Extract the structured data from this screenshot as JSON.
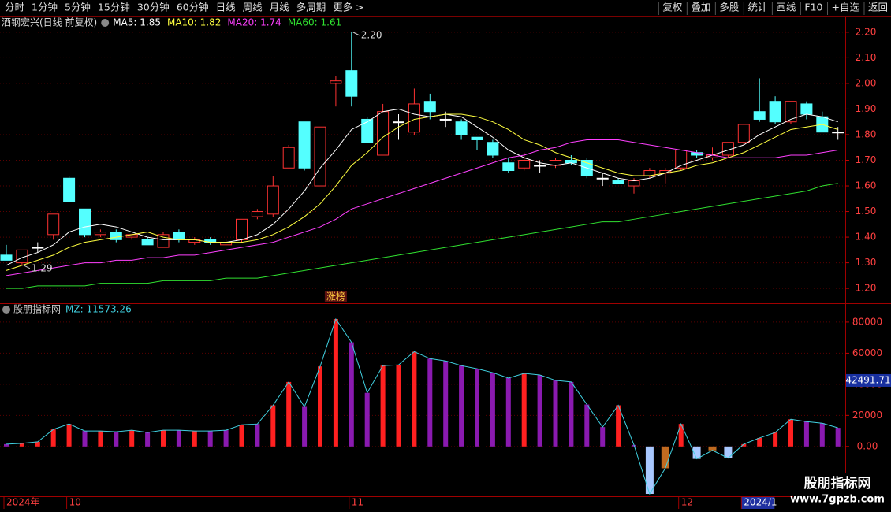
{
  "toolbar": {
    "left": [
      "分时",
      "1分钟",
      "5分钟",
      "15分钟",
      "30分钟",
      "60分钟",
      "日线",
      "周线",
      "月线",
      "多周期",
      "更多 >"
    ],
    "active": "日线",
    "right": [
      "复权",
      "叠加",
      "多股",
      "统计",
      "画线",
      "F10",
      "+自选",
      "返回"
    ]
  },
  "watermark": {
    "title": "股朋指标网",
    "url": "www.7gpzb.com"
  },
  "chart_data": [
    {
      "type": "candlestick",
      "title": "酒钢宏兴(日线 前复权)",
      "open": [
        1.33,
        1.3,
        1.36,
        1.41,
        1.63,
        1.51,
        1.41,
        1.42,
        1.4,
        1.39,
        1.36,
        1.42,
        1.38,
        1.39,
        1.37,
        1.39,
        1.48,
        1.49,
        1.67,
        1.85,
        1.6,
        2.0,
        2.05,
        1.86,
        1.72,
        1.85,
        1.81,
        1.93,
        1.86,
        1.85,
        1.79,
        1.77,
        1.69,
        1.67,
        1.68,
        1.68,
        1.7,
        1.7,
        1.63,
        1.62,
        1.6,
        1.64,
        1.65,
        1.67,
        1.73,
        1.71,
        1.72,
        1.77,
        1.89,
        1.93,
        1.85,
        1.92,
        1.87,
        1.81
      ],
      "high": [
        1.37,
        1.35,
        1.38,
        1.49,
        1.64,
        1.51,
        1.43,
        1.43,
        1.41,
        1.4,
        1.42,
        1.43,
        1.4,
        1.4,
        1.39,
        1.47,
        1.51,
        1.64,
        1.76,
        1.85,
        1.83,
        2.03,
        2.2,
        1.87,
        1.92,
        1.88,
        1.98,
        1.96,
        1.89,
        1.86,
        1.79,
        1.78,
        1.71,
        1.73,
        1.7,
        1.71,
        1.72,
        1.71,
        1.65,
        1.63,
        1.63,
        1.67,
        1.67,
        1.74,
        1.74,
        1.75,
        1.77,
        1.84,
        2.02,
        1.95,
        1.93,
        1.93,
        1.89,
        1.83
      ],
      "low": [
        1.31,
        1.29,
        1.34,
        1.39,
        1.54,
        1.4,
        1.4,
        1.38,
        1.39,
        1.37,
        1.36,
        1.38,
        1.37,
        1.37,
        1.37,
        1.38,
        1.47,
        1.48,
        1.67,
        1.66,
        1.6,
        1.91,
        1.91,
        1.77,
        1.72,
        1.78,
        1.8,
        1.86,
        1.83,
        1.78,
        1.74,
        1.71,
        1.65,
        1.66,
        1.65,
        1.67,
        1.68,
        1.63,
        1.6,
        1.61,
        1.57,
        1.63,
        1.61,
        1.66,
        1.71,
        1.7,
        1.71,
        1.76,
        1.85,
        1.84,
        1.84,
        1.86,
        1.81,
        1.78
      ],
      "close": [
        1.31,
        1.35,
        1.36,
        1.49,
        1.54,
        1.41,
        1.42,
        1.39,
        1.41,
        1.37,
        1.41,
        1.39,
        1.39,
        1.38,
        1.38,
        1.47,
        1.5,
        1.6,
        1.75,
        1.67,
        1.83,
        2.01,
        1.95,
        1.77,
        1.89,
        1.85,
        1.92,
        1.89,
        1.86,
        1.8,
        1.78,
        1.72,
        1.66,
        1.7,
        1.68,
        1.7,
        1.69,
        1.64,
        1.63,
        1.61,
        1.62,
        1.66,
        1.66,
        1.74,
        1.72,
        1.72,
        1.77,
        1.84,
        1.86,
        1.85,
        1.93,
        1.88,
        1.81,
        1.81
      ],
      "up_color": "#ff3232",
      "down_color": "#54ffff",
      "flat_color": "#ffffff",
      "series": [
        {
          "name": "MA5: 1.85",
          "color": "#ffffff",
          "values": [
            1.29,
            1.32,
            1.34,
            1.37,
            1.42,
            1.44,
            1.45,
            1.44,
            1.42,
            1.4,
            1.39,
            1.39,
            1.39,
            1.38,
            1.38,
            1.39,
            1.41,
            1.45,
            1.51,
            1.58,
            1.67,
            1.74,
            1.82,
            1.85,
            1.89,
            1.9,
            1.88,
            1.87,
            1.88,
            1.87,
            1.83,
            1.79,
            1.74,
            1.71,
            1.69,
            1.68,
            1.69,
            1.67,
            1.65,
            1.63,
            1.62,
            1.63,
            1.65,
            1.68,
            1.7,
            1.72,
            1.74,
            1.76,
            1.8,
            1.83,
            1.86,
            1.88,
            1.87,
            1.85
          ]
        },
        {
          "name": "MA10: 1.82",
          "color": "#ffff40",
          "values": [
            1.27,
            1.29,
            1.31,
            1.33,
            1.36,
            1.38,
            1.39,
            1.4,
            1.41,
            1.42,
            1.4,
            1.39,
            1.39,
            1.38,
            1.38,
            1.38,
            1.39,
            1.41,
            1.44,
            1.48,
            1.53,
            1.6,
            1.68,
            1.73,
            1.79,
            1.83,
            1.86,
            1.87,
            1.88,
            1.88,
            1.87,
            1.85,
            1.82,
            1.78,
            1.76,
            1.73,
            1.71,
            1.69,
            1.67,
            1.65,
            1.64,
            1.64,
            1.65,
            1.66,
            1.68,
            1.69,
            1.71,
            1.73,
            1.76,
            1.79,
            1.82,
            1.83,
            1.84,
            1.82
          ]
        },
        {
          "name": "MA20: 1.74",
          "color": "#ff40ff",
          "values": [
            1.25,
            1.26,
            1.27,
            1.28,
            1.29,
            1.3,
            1.3,
            1.31,
            1.31,
            1.32,
            1.32,
            1.33,
            1.33,
            1.34,
            1.35,
            1.36,
            1.37,
            1.38,
            1.4,
            1.42,
            1.44,
            1.47,
            1.51,
            1.53,
            1.55,
            1.57,
            1.59,
            1.61,
            1.63,
            1.65,
            1.67,
            1.69,
            1.71,
            1.72,
            1.74,
            1.75,
            1.77,
            1.78,
            1.78,
            1.78,
            1.77,
            1.76,
            1.75,
            1.74,
            1.73,
            1.72,
            1.71,
            1.71,
            1.71,
            1.71,
            1.72,
            1.72,
            1.73,
            1.74
          ]
        },
        {
          "name": "MA60: 1.61",
          "color": "#30e030",
          "values": [
            1.2,
            1.2,
            1.21,
            1.21,
            1.21,
            1.21,
            1.22,
            1.22,
            1.22,
            1.22,
            1.23,
            1.23,
            1.23,
            1.23,
            1.24,
            1.24,
            1.24,
            1.25,
            1.26,
            1.27,
            1.28,
            1.29,
            1.3,
            1.31,
            1.32,
            1.33,
            1.34,
            1.35,
            1.36,
            1.37,
            1.38,
            1.39,
            1.4,
            1.41,
            1.42,
            1.43,
            1.44,
            1.45,
            1.46,
            1.46,
            1.47,
            1.48,
            1.49,
            1.5,
            1.51,
            1.52,
            1.53,
            1.54,
            1.55,
            1.56,
            1.57,
            1.58,
            1.6,
            1.61
          ]
        }
      ],
      "ylim": [
        1.142,
        2.258
      ],
      "yticks": [
        {
          "value": 1.2,
          "label": "1.20"
        },
        {
          "value": 1.3,
          "label": "1.30"
        },
        {
          "value": 1.4,
          "label": "1.40"
        },
        {
          "value": 1.5,
          "label": "1.50"
        },
        {
          "value": 1.6,
          "label": "1.60"
        },
        {
          "value": 1.7,
          "label": "1.70"
        },
        {
          "value": 1.8,
          "label": "1.80"
        },
        {
          "value": 1.9,
          "label": "1.90"
        },
        {
          "value": 2.0,
          "label": "2.00"
        },
        {
          "value": 2.1,
          "label": "2.10"
        },
        {
          "value": 2.2,
          "label": "2.20"
        }
      ],
      "grid": true,
      "annotations": [
        {
          "text": "2.20",
          "index": 22,
          "value": 2.2
        },
        {
          "text": "1.29",
          "index": 1,
          "value": 1.29
        },
        {
          "text": "涨榜",
          "index": 21
        }
      ]
    },
    {
      "type": "bar",
      "title": "股朋指标网",
      "legend": "MZ: 11573.26",
      "categories": [
        "2024年",
        null,
        null,
        null,
        "10",
        null,
        null,
        null,
        null,
        null,
        null,
        null,
        null,
        null,
        null,
        null,
        null,
        null,
        null,
        null,
        null,
        null,
        "11",
        null,
        null,
        null,
        null,
        null,
        null,
        null,
        null,
        null,
        null,
        null,
        null,
        null,
        null,
        null,
        null,
        null,
        null,
        null,
        null,
        "12",
        null,
        null,
        null,
        "2024/1",
        null,
        null,
        null,
        null,
        null,
        null
      ],
      "values": [
        1500,
        2000,
        3000,
        11000,
        14500,
        10000,
        10000,
        9500,
        10500,
        9000,
        10500,
        10500,
        10000,
        10000,
        10500,
        14000,
        14500,
        26500,
        41500,
        25500,
        51500,
        82000,
        67000,
        34500,
        52000,
        52500,
        61000,
        56500,
        55000,
        52000,
        50000,
        47500,
        44000,
        47000,
        46000,
        42500,
        41500,
        27000,
        12500,
        26500,
        1000,
        -30500,
        -14000,
        14500,
        -8000,
        -2500,
        -7500,
        1500,
        5500,
        9000,
        17500,
        16000,
        15000,
        12000
      ],
      "bar_colors": [
        "#8a1ab0",
        "#ff2020",
        "#ff2020",
        "#ff2020",
        "#ff2020",
        "#8a1ab0",
        "#ff2020",
        "#8a1ab0",
        "#ff2020",
        "#8a1ab0",
        "#ff2020",
        "#8a1ab0",
        "#ff2020",
        "#8a1ab0",
        "#8a1ab0",
        "#ff2020",
        "#8a1ab0",
        "#ff2020",
        "#ff2020",
        "#8a1ab0",
        "#ff2020",
        "#ff2020",
        "#8a1ab0",
        "#8a1ab0",
        "#ff2020",
        "#ff2020",
        "#ff2020",
        "#8a1ab0",
        "#8a1ab0",
        "#8a1ab0",
        "#8a1ab0",
        "#8a1ab0",
        "#8a1ab0",
        "#ff2020",
        "#8a1ab0",
        "#8a1ab0",
        "#8a1ab0",
        "#8a1ab0",
        "#8a1ab0",
        "#ff2020",
        "#8a1ab0",
        "#a8c8ff",
        "#c06a20",
        "#ff2020",
        "#a8c8ff",
        "#c06a20",
        "#a8c8ff",
        "#ff2020",
        "#ff2020",
        "#ff2020",
        "#ff2020",
        "#8a1ab0",
        "#8a1ab0",
        "#8a1ab0"
      ],
      "line_color": "#40d0e0",
      "ylim": [
        -31000,
        90600
      ],
      "yticks": [
        {
          "value": 0,
          "label": "0.00"
        },
        20000,
        40000,
        60000,
        80000
      ],
      "current": {
        "value": 42491.71,
        "label": "42491.71"
      },
      "grid": true
    }
  ]
}
